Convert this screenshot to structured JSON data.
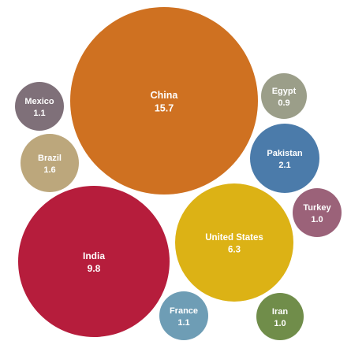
{
  "chart_data": {
    "type": "bubble",
    "title": "",
    "items": [
      {
        "name": "China",
        "value": "15.7",
        "color": "#CF7121"
      },
      {
        "name": "India",
        "value": "9.8",
        "color": "#B61D3C"
      },
      {
        "name": "United States",
        "value": "6.3",
        "color": "#DCB215"
      },
      {
        "name": "Pakistan",
        "value": "2.1",
        "color": "#4B7BAA"
      },
      {
        "name": "Brazil",
        "value": "1.6",
        "color": "#BCA77C"
      },
      {
        "name": "Mexico",
        "value": "1.1",
        "color": "#7F7079"
      },
      {
        "name": "France",
        "value": "1.1",
        "color": "#6E9DB5"
      },
      {
        "name": "Turkey",
        "value": "1.0",
        "color": "#9B6279"
      },
      {
        "name": "Iran",
        "value": "1.0",
        "color": "#708D4A"
      },
      {
        "name": "Egypt",
        "value": "0.9",
        "color": "#9B9E89"
      }
    ]
  }
}
